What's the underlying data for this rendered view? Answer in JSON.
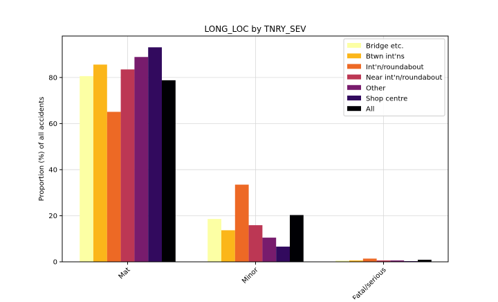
{
  "chart_data": {
    "type": "bar",
    "title": "LONG_LOC by TNRY_SEV",
    "xlabel": "",
    "ylabel": "Proportion (%) of all accidents",
    "categories": [
      "Mat",
      "Minor",
      "Fatal/serious"
    ],
    "ylim": [
      0,
      98
    ],
    "yticks": [
      0,
      20,
      40,
      60,
      80
    ],
    "grid": true,
    "legend_position": "top-right",
    "series": [
      {
        "name": "Bridge etc.",
        "color": "#fcffa4",
        "values": [
          80.6,
          18.6,
          0.5
        ]
      },
      {
        "name": "Btwn int'ns",
        "color": "#fbb61a",
        "values": [
          85.6,
          13.7,
          0.6
        ]
      },
      {
        "name": "Int'n/roundabout",
        "color": "#ed6925",
        "values": [
          65.1,
          33.5,
          1.4
        ]
      },
      {
        "name": "Near int'n/roundabout",
        "color": "#bc3754",
        "values": [
          83.5,
          15.9,
          0.6
        ]
      },
      {
        "name": "Other",
        "color": "#781c6d",
        "values": [
          88.9,
          10.5,
          0.6
        ]
      },
      {
        "name": "Shop centre",
        "color": "#320a5e",
        "values": [
          93.1,
          6.6,
          0.3
        ]
      },
      {
        "name": "All",
        "color": "#000004",
        "values": [
          78.8,
          20.3,
          0.9
        ]
      }
    ]
  }
}
